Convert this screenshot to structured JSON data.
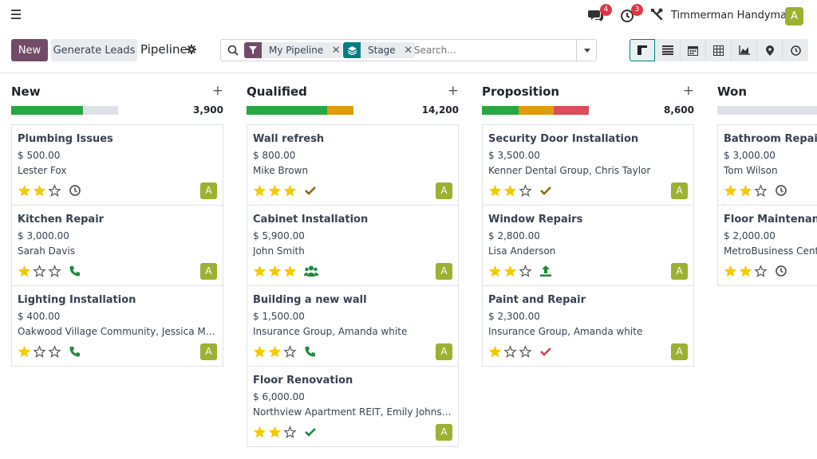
{
  "topbar": {
    "messages_badge": "4",
    "activities_badge": "3",
    "company": "Timmerman Handyman",
    "user_initial": "A"
  },
  "control": {
    "new_label": "New",
    "generate_leads_label": "Generate Leads",
    "title": "Pipeline",
    "search_placeholder": "Search...",
    "facets": [
      {
        "label": "My Pipeline",
        "icon": "filter-icon",
        "color": "#714b67"
      },
      {
        "label": "Stage",
        "icon": "layers-icon",
        "color": "#017e84"
      }
    ],
    "views": [
      "kanban-view-icon",
      "list-view-icon",
      "calendar-view-icon",
      "pivot-view-icon",
      "graph-view-icon",
      "map-view-icon",
      "activity-view-icon"
    ]
  },
  "columns": [
    {
      "title": "New",
      "total": "3,900",
      "progress": [
        {
          "fraction": 0.67,
          "color": "#28a745"
        }
      ],
      "cards": [
        {
          "title": "Plumbing Issues",
          "amount": "$ 500.00",
          "customer": "Lester Fox",
          "stars": 2,
          "activity": "clock-icon",
          "avatar": "A"
        },
        {
          "title": "Kitchen Repair",
          "amount": "$ 3,000.00",
          "customer": "Sarah Davis",
          "stars": 1,
          "activity": "phone-icon",
          "avatar": "A"
        },
        {
          "title": "Lighting Installation",
          "amount": "$ 400.00",
          "customer": "Oakwood Village Community, Jessica Martinez",
          "stars": 1,
          "activity": "phone-icon",
          "avatar": "A"
        }
      ]
    },
    {
      "title": "Qualified",
      "total": "14,200",
      "progress": [
        {
          "fraction": 0.75,
          "color": "#28a745"
        },
        {
          "fraction": 0.25,
          "color": "#e09d0a"
        }
      ],
      "cards": [
        {
          "title": "Wall refresh",
          "amount": "$ 800.00",
          "customer": "Mike Brown",
          "stars": 3,
          "activity": "check-icon-olive",
          "avatar": "A"
        },
        {
          "title": "Cabinet Installation",
          "amount": "$ 5,900.00",
          "customer": "John Smith",
          "stars": 3,
          "activity": "users-icon",
          "avatar": "A"
        },
        {
          "title": "Building a new wall",
          "amount": "$ 1,500.00",
          "customer": "Insurance Group, Amanda white",
          "stars": 2,
          "activity": "phone-icon",
          "avatar": "A"
        },
        {
          "title": "Floor Renovation",
          "amount": "$ 6,000.00",
          "customer": "Northview Apartment REIT, Emily Johnson",
          "stars": 2,
          "activity": "check-icon-green",
          "avatar": "A"
        }
      ]
    },
    {
      "title": "Proposition",
      "total": "8,600",
      "progress": [
        {
          "fraction": 0.34,
          "color": "#28a745"
        },
        {
          "fraction": 0.33,
          "color": "#e09d0a"
        },
        {
          "fraction": 0.33,
          "color": "#dc4c5a"
        }
      ],
      "cards": [
        {
          "title": "Security Door Installation",
          "amount": "$ 3,500.00",
          "customer": "Kenner Dental Group, Chris Taylor",
          "stars": 2,
          "activity": "check-icon-olive",
          "avatar": "A"
        },
        {
          "title": "Window Repairs",
          "amount": "$ 2,800.00",
          "customer": "Lisa Anderson",
          "stars": 2,
          "activity": "upload-icon",
          "avatar": "A"
        },
        {
          "title": "Paint and Repair",
          "amount": "$ 2,300.00",
          "customer": "Insurance Group, Amanda white",
          "stars": 1,
          "activity": "check-icon-red",
          "avatar": "A"
        }
      ]
    },
    {
      "title": "Won",
      "total": "",
      "progress": [],
      "cards": [
        {
          "title": "Bathroom Repairs",
          "amount": "$ 3,000.00",
          "customer": "Tom Wilson",
          "stars": 2,
          "activity": "clock-icon",
          "avatar": "A"
        },
        {
          "title": "Floor Maintenance",
          "amount": "$ 2,000.00",
          "customer": "MetroBusiness Center",
          "stars": 2,
          "activity": "clock-icon",
          "avatar": "A"
        }
      ]
    }
  ]
}
